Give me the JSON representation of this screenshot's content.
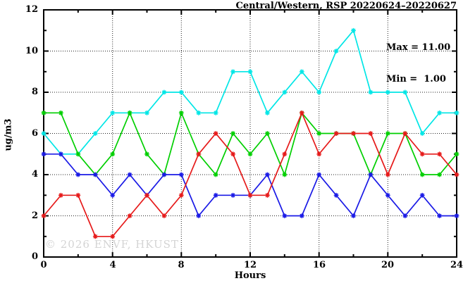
{
  "chart_data": {
    "type": "line",
    "title": "Central/Western, RSP 20220624–20220627",
    "xlabel": "Hours",
    "ylabel": "ug/m3",
    "xlim": [
      0,
      24
    ],
    "ylim": [
      0,
      12
    ],
    "x_major_ticks": [
      0,
      4,
      8,
      12,
      16,
      20,
      24
    ],
    "x_minor_ticks": [
      2,
      6,
      10,
      14,
      18,
      22
    ],
    "y_major_ticks": [
      0,
      2,
      4,
      6,
      8,
      10,
      12
    ],
    "y_minor_ticks": [
      1,
      3,
      5,
      7,
      9,
      11
    ],
    "grid": "dotted lines at major ticks, legend absent",
    "annotations": {
      "max": "Max = 11.00",
      "min": "Min =  1.00"
    },
    "watermark": "© 2026 ENVF, HKUST",
    "x": [
      0,
      1,
      2,
      3,
      4,
      5,
      6,
      7,
      8,
      9,
      10,
      11,
      12,
      13,
      14,
      15,
      16,
      17,
      18,
      19,
      20,
      21,
      22,
      23,
      24
    ],
    "series": [
      {
        "name": "cyan",
        "color": "#00e6e6",
        "values": [
          6,
          5,
          5,
          6,
          7,
          7,
          7,
          8,
          8,
          7,
          7,
          9,
          9,
          7,
          8,
          9,
          8,
          10,
          11,
          8,
          8,
          8,
          6,
          7,
          7
        ]
      },
      {
        "name": "green",
        "color": "#00cf00",
        "values": [
          7,
          7,
          5,
          4,
          5,
          7,
          5,
          4,
          7,
          5,
          4,
          6,
          5,
          6,
          4,
          7,
          6,
          6,
          6,
          4,
          6,
          6,
          4,
          4,
          5
        ]
      },
      {
        "name": "blue",
        "color": "#1a1ae6",
        "values": [
          5,
          5,
          4,
          4,
          3,
          4,
          3,
          4,
          4,
          2,
          3,
          3,
          3,
          4,
          2,
          2,
          4,
          3,
          2,
          4,
          3,
          2,
          3,
          2,
          2
        ]
      },
      {
        "name": "red",
        "color": "#e61a1a",
        "values": [
          2,
          3,
          3,
          1,
          1,
          2,
          3,
          2,
          3,
          5,
          6,
          5,
          3,
          3,
          5,
          7,
          5,
          6,
          6,
          6,
          4,
          6,
          5,
          5,
          4
        ]
      }
    ],
    "axis_color": "#000000",
    "grid_color": "#222222"
  }
}
